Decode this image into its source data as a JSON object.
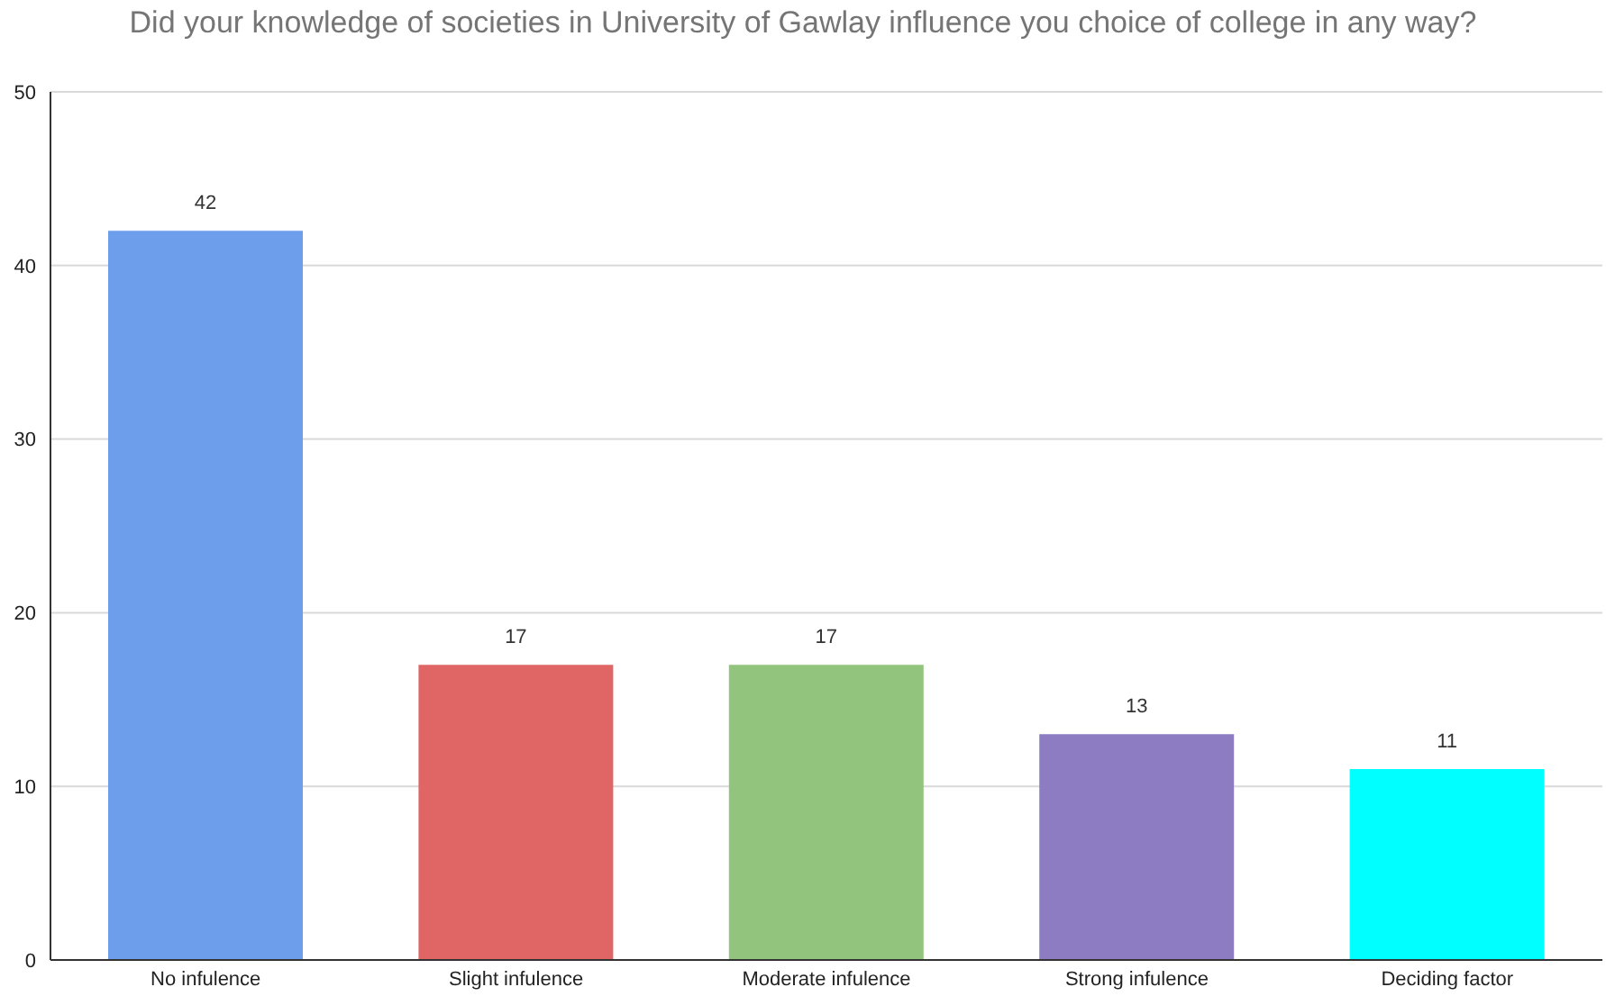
{
  "chart_data": {
    "type": "bar",
    "title": "Did your knowledge of societies in University of Gawlay influence you choice of college in any way?",
    "categories": [
      "No infulence",
      "Slight infulence",
      "Moderate infulence",
      "Strong infulence",
      "Deciding factor"
    ],
    "values": [
      42,
      17,
      17,
      13,
      11
    ],
    "colors": [
      "#6d9eeb",
      "#e06666",
      "#93c47d",
      "#8e7cc3",
      "#00ffff"
    ],
    "ylim": [
      0,
      50
    ],
    "yticks": [
      0,
      10,
      20,
      30,
      40,
      50
    ],
    "grid": "y",
    "data_labels": true
  }
}
